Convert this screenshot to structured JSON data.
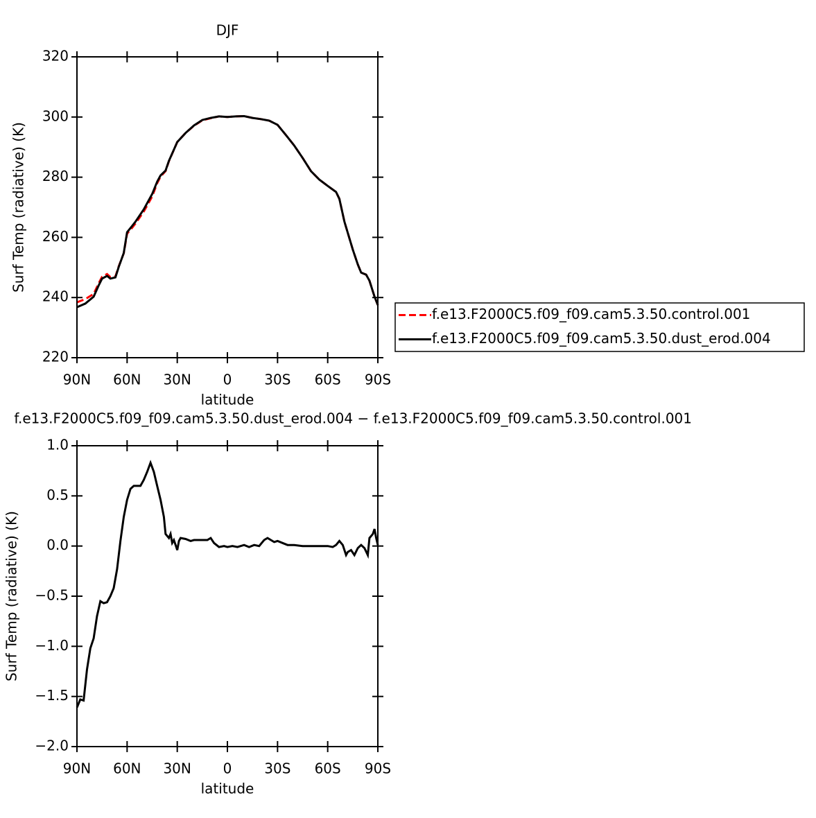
{
  "chart_data": [
    {
      "type": "line",
      "title": "DJF",
      "xlabel": "latitude",
      "ylabel": "Surf Temp (radiative) (K)",
      "xlim": [
        90,
        -90
      ],
      "xticks": [
        {
          "value": 90,
          "label": "90N"
        },
        {
          "value": 60,
          "label": "60N"
        },
        {
          "value": 30,
          "label": "30N"
        },
        0,
        {
          "value": -30,
          "label": "30S"
        },
        {
          "value": -60,
          "label": "60S"
        },
        {
          "value": -90,
          "label": "90S"
        }
      ],
      "ylim": [
        220,
        320
      ],
      "yticks": [
        220,
        240,
        260,
        280,
        300,
        320
      ],
      "legend": "right",
      "x": [
        90,
        85,
        80,
        77,
        75,
        72,
        70,
        67,
        65,
        62,
        60,
        57,
        55,
        50,
        45,
        42,
        40,
        37,
        35,
        30,
        25,
        20,
        15,
        10,
        5,
        0,
        -5,
        -10,
        -15,
        -20,
        -25,
        -30,
        -35,
        -40,
        -45,
        -50,
        -55,
        -60,
        -65,
        -67,
        -70,
        -75,
        -78,
        -80,
        -83,
        -85,
        -88,
        -90
      ],
      "series": [
        {
          "name": "f.e13.F2000C5.f09_f09.cam5.3.50.control.001",
          "color": "#ff0000",
          "dashed": true,
          "values": [
            238.4,
            239.5,
            241.2,
            244.7,
            246.9,
            247.8,
            246.8,
            247.0,
            250.4,
            254.7,
            261.2,
            263.2,
            264.6,
            268.6,
            273.6,
            278.0,
            280.2,
            282.0,
            285.3,
            291.7,
            294.7,
            297.1,
            298.9,
            299.6,
            300.2,
            300,
            300.2,
            300.3,
            299.7,
            299.3,
            298.8,
            297.4,
            294,
            290.5,
            286.4,
            282,
            279.2,
            277.1,
            275.1,
            272.8,
            265.2,
            256,
            251,
            248.3,
            247.6,
            245.6,
            240.3,
            237.5
          ]
        },
        {
          "name": "f.e13.F2000C5.f09_f09.cam5.3.50.dust_erod.004",
          "color": "#000000",
          "dashed": false,
          "values": [
            236.8,
            238,
            240.3,
            244,
            246.3,
            247.2,
            246.3,
            246.7,
            250.2,
            254.8,
            261.7,
            263.8,
            265.2,
            269.3,
            274.4,
            278.5,
            280.6,
            282.2,
            285.4,
            291.7,
            294.7,
            297.2,
            299.0,
            299.7,
            300.2,
            300,
            300.2,
            300.3,
            299.7,
            299.3,
            298.8,
            297.4,
            294,
            290.5,
            286.4,
            282,
            279.2,
            277.1,
            275.1,
            272.8,
            265.2,
            256,
            251,
            248.3,
            247.6,
            245.6,
            240.3,
            237.5
          ]
        }
      ]
    },
    {
      "type": "line",
      "title": "f.e13.F2000C5.f09_f09.cam5.3.50.dust_erod.004 − f.e13.F2000C5.f09_f09.cam5.3.50.control.001",
      "xlabel": "latitude",
      "ylabel": "Surf Temp (radiative) (K)",
      "xlim": [
        90,
        -90
      ],
      "xticks": [
        {
          "value": 90,
          "label": "90N"
        },
        {
          "value": 60,
          "label": "60N"
        },
        {
          "value": 30,
          "label": "30N"
        },
        0,
        {
          "value": -30,
          "label": "30S"
        },
        {
          "value": -60,
          "label": "60S"
        },
        {
          "value": -90,
          "label": "90S"
        }
      ],
      "ylim": [
        -2,
        1
      ],
      "yticks": [
        {
          "value": -2,
          "label": "−2.0"
        },
        {
          "value": -1.5,
          "label": "−1.5"
        },
        {
          "value": -1,
          "label": "−1.0"
        },
        {
          "value": -0.5,
          "label": "−0.5"
        },
        {
          "value": 0,
          "label": "0.0"
        },
        0.5,
        {
          "value": 1,
          "label": "1.0"
        }
      ],
      "x": [
        90,
        88,
        86,
        84,
        82,
        80,
        78,
        76,
        74,
        72,
        70,
        68,
        66,
        64,
        62,
        60,
        58,
        56,
        54,
        52,
        50,
        48,
        46,
        44,
        42,
        40,
        38,
        37,
        36,
        35,
        34,
        33,
        32,
        31,
        30,
        29,
        28,
        25,
        22,
        20,
        18,
        15,
        12,
        10,
        8,
        5,
        2,
        0,
        -3,
        -6,
        -10,
        -13,
        -16,
        -19,
        -22,
        -24,
        -26,
        -28,
        -30,
        -33,
        -36,
        -40,
        -45,
        -50,
        -55,
        -60,
        -63,
        -65,
        -67,
        -69,
        -71,
        -72,
        -74,
        -76,
        -78,
        -80,
        -82,
        -84,
        -85,
        -87,
        -88,
        -89,
        -90
      ],
      "series": [
        {
          "color": "#000000",
          "dashed": false,
          "values": [
            -1.61,
            -1.53,
            -1.54,
            -1.23,
            -1.02,
            -0.92,
            -0.7,
            -0.55,
            -0.57,
            -0.56,
            -0.5,
            -0.42,
            -0.23,
            0.05,
            0.29,
            0.46,
            0.57,
            0.6,
            0.6,
            0.6,
            0.66,
            0.74,
            0.83,
            0.74,
            0.6,
            0.46,
            0.29,
            0.12,
            0.1,
            0.08,
            0.12,
            0.03,
            0.06,
            0.01,
            -0.04,
            0.05,
            0.08,
            0.07,
            0.05,
            0.06,
            0.06,
            0.06,
            0.06,
            0.08,
            0.03,
            -0.01,
            0,
            -0.01,
            0,
            -0.01,
            0.01,
            -0.01,
            0.01,
            0,
            0.06,
            0.08,
            0.06,
            0.04,
            0.05,
            0.03,
            0.01,
            0.01,
            0,
            0,
            0,
            0,
            -0.01,
            0.01,
            0.05,
            0.01,
            -0.09,
            -0.06,
            -0.04,
            -0.09,
            -0.02,
            0.01,
            -0.02,
            -0.09,
            0.08,
            0.12,
            0.17,
            0.08,
            0.01
          ]
        }
      ]
    }
  ]
}
